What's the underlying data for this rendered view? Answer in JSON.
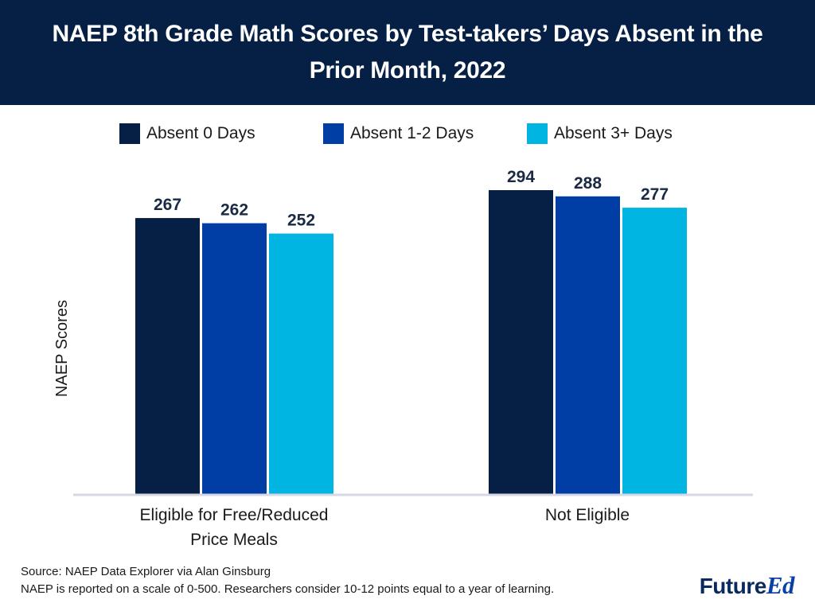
{
  "header": {
    "title": "NAEP 8th Grade Math Scores by Test-takers’ Days Absent in the Prior Month, 2022"
  },
  "chart_data": {
    "type": "bar",
    "categories": [
      "Eligible for Free/Reduced Price Meals",
      "Not Eligible"
    ],
    "category_lines": [
      [
        "Eligible for Free/Reduced",
        "Price Meals"
      ],
      [
        "Not Eligible"
      ]
    ],
    "series": [
      {
        "name": "Absent 0 Days",
        "values": [
          267,
          294
        ],
        "color": "#061f44"
      },
      {
        "name": "Absent 1-2 Days",
        "values": [
          262,
          288
        ],
        "color": "#003da5"
      },
      {
        "name": "Absent 3+ Days",
        "values": [
          252,
          277
        ],
        "color": "#00b5e2"
      }
    ],
    "ylabel": "NAEP Scores",
    "xlabel": "",
    "ylim": [
      0,
      310
    ],
    "grid": false,
    "legend_position": "top",
    "data_labels": true
  },
  "footer": {
    "source": "Source: NAEP Data Explorer via Alan Ginsburg",
    "note": "NAEP is reported on a scale of 0-500. Researchers consider 10-12 points equal to a year of learning."
  },
  "logo": {
    "text_main": "Future",
    "text_accent": "Ed"
  },
  "colors": {
    "header_bg": "#061f44",
    "axis_line": "#d6d8e4"
  }
}
